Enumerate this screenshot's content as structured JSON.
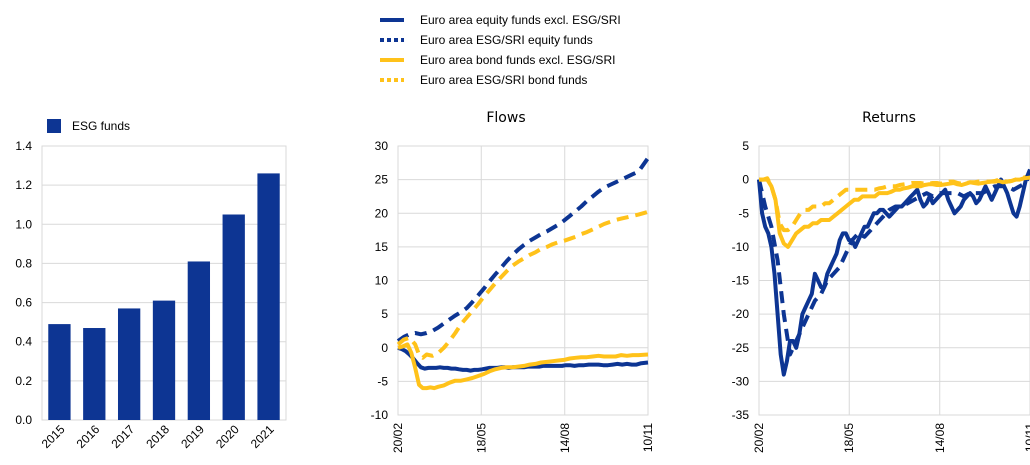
{
  "colors": {
    "blue": "#0d3593",
    "yellow": "#ffc21a",
    "grid": "#d9d9d9",
    "axis": "#8c8c8c"
  },
  "top_legend": [
    {
      "label": "Euro area equity funds excl. ESG/SRI",
      "color": "#0d3593",
      "style": "solid"
    },
    {
      "label": "Euro area ESG/SRI equity funds",
      "color": "#0d3593",
      "style": "dotted"
    },
    {
      "label": "Euro area bond funds excl. ESG/SRI",
      "color": "#ffc21a",
      "style": "solid"
    },
    {
      "label": "Euro area ESG/SRI bond funds",
      "color": "#ffc21a",
      "style": "dotted"
    }
  ],
  "chart_data": [
    {
      "type": "bar",
      "title": "",
      "legend": [
        "ESG funds"
      ],
      "categories": [
        "2015",
        "2016",
        "2017",
        "2018",
        "2019",
        "2020",
        "2021"
      ],
      "series": [
        {
          "name": "ESG funds",
          "values": [
            0.49,
            0.47,
            0.57,
            0.61,
            0.81,
            1.05,
            1.26
          ]
        }
      ],
      "ylim": [
        0,
        1.4
      ],
      "yticks": [
        "0.0",
        "0.2",
        "0.4",
        "0.6",
        "0.8",
        "1.0",
        "1.2",
        "1.4"
      ],
      "grid": true
    },
    {
      "type": "line",
      "title": "Flows",
      "x_ticks": [
        "20/02",
        "18/05",
        "14/08",
        "10/11"
      ],
      "ylim": [
        -10,
        30
      ],
      "yticks": [
        "-10",
        "-5",
        "0",
        "5",
        "10",
        "15",
        "20",
        "25",
        "30"
      ],
      "grid": true,
      "series": [
        {
          "name": "Euro area equity funds excl. ESG/SRI",
          "color": "#0d3593",
          "style": "solid",
          "x": [
            0,
            4,
            8,
            12,
            16,
            20,
            24,
            28,
            32,
            36,
            40,
            44,
            48,
            52,
            56,
            60,
            64,
            68,
            72,
            76,
            80,
            84,
            88,
            92,
            96,
            100,
            104,
            108,
            112,
            116,
            120,
            124,
            128,
            132,
            136,
            140,
            144,
            148,
            152,
            156,
            160,
            164,
            168,
            172,
            176,
            180,
            185,
            190,
            195,
            200,
            205,
            210,
            215,
            220,
            225,
            230,
            235,
            240,
            245,
            250,
            255,
            262
          ],
          "y": [
            0,
            -0.2,
            -0.5,
            -1,
            -1.6,
            -2.3,
            -2.9,
            -3.1,
            -3.0,
            -3.0,
            -3.0,
            -2.9,
            -3.0,
            -3.0,
            -3.1,
            -3.1,
            -3.2,
            -3.3,
            -3.3,
            -3.4,
            -3.3,
            -3.3,
            -3.2,
            -3.1,
            -3.0,
            -3.0,
            -3.0,
            -2.9,
            -2.9,
            -3.0,
            -2.9,
            -2.9,
            -2.9,
            -2.9,
            -2.8,
            -2.8,
            -2.8,
            -2.8,
            -2.7,
            -2.7,
            -2.7,
            -2.7,
            -2.7,
            -2.7,
            -2.6,
            -2.6,
            -2.7,
            -2.6,
            -2.6,
            -2.5,
            -2.5,
            -2.5,
            -2.6,
            -2.6,
            -2.5,
            -2.4,
            -2.5,
            -2.4,
            -2.5,
            -2.5,
            -2.3,
            -2.2
          ]
        },
        {
          "name": "Euro area ESG/SRI equity funds",
          "color": "#0d3593",
          "style": "dashed",
          "x": [
            0,
            6,
            12,
            18,
            24,
            30,
            36,
            42,
            48,
            54,
            60,
            66,
            72,
            78,
            84,
            90,
            96,
            102,
            108,
            114,
            120,
            126,
            132,
            138,
            144,
            150,
            156,
            162,
            168,
            174,
            180,
            186,
            192,
            198,
            204,
            210,
            216,
            222,
            228,
            234,
            240,
            246,
            252,
            256,
            262
          ],
          "y": [
            1.0,
            1.6,
            2.0,
            2.2,
            2.0,
            2.2,
            2.5,
            3.0,
            3.6,
            4.2,
            4.8,
            5.3,
            5.9,
            6.8,
            7.8,
            8.8,
            9.9,
            10.9,
            11.9,
            12.9,
            13.8,
            14.6,
            15.3,
            15.9,
            16.4,
            16.9,
            17.3,
            17.8,
            18.3,
            18.9,
            19.6,
            20.3,
            21.0,
            21.8,
            22.5,
            23.2,
            23.8,
            24.2,
            24.6,
            25.0,
            25.4,
            25.8,
            26.2,
            27.0,
            28.2
          ]
        },
        {
          "name": "Euro area bond funds excl. ESG/SRI",
          "color": "#ffc21a",
          "style": "solid",
          "x": [
            0,
            5,
            10,
            14,
            18,
            22,
            26,
            30,
            34,
            38,
            42,
            48,
            54,
            60,
            66,
            72,
            78,
            84,
            90,
            96,
            102,
            108,
            114,
            120,
            126,
            132,
            138,
            144,
            150,
            156,
            162,
            168,
            174,
            180,
            186,
            192,
            198,
            204,
            210,
            216,
            222,
            228,
            234,
            240,
            246,
            252,
            262
          ],
          "y": [
            0,
            0.2,
            0.5,
            -0.8,
            -3.0,
            -5.5,
            -6.0,
            -6.0,
            -5.9,
            -6.0,
            -5.8,
            -5.6,
            -5.2,
            -4.9,
            -4.9,
            -4.7,
            -4.5,
            -4.2,
            -3.9,
            -3.5,
            -3.2,
            -3.0,
            -2.9,
            -2.9,
            -2.8,
            -2.7,
            -2.5,
            -2.4,
            -2.2,
            -2.1,
            -2.0,
            -1.9,
            -1.8,
            -1.6,
            -1.5,
            -1.4,
            -1.4,
            -1.3,
            -1.2,
            -1.3,
            -1.3,
            -1.3,
            -1.1,
            -1.2,
            -1.1,
            -1.1,
            -1.0
          ]
        },
        {
          "name": "Euro area ESG/SRI bond funds",
          "color": "#ffc21a",
          "style": "dashed",
          "x": [
            0,
            6,
            12,
            18,
            22,
            26,
            30,
            36,
            42,
            48,
            54,
            60,
            66,
            72,
            78,
            84,
            90,
            96,
            102,
            108,
            114,
            120,
            126,
            132,
            138,
            144,
            150,
            156,
            162,
            168,
            174,
            180,
            186,
            192,
            198,
            204,
            210,
            216,
            222,
            228,
            234,
            240,
            246,
            252,
            262
          ],
          "y": [
            0.5,
            1.2,
            1.5,
            0.5,
            -1.0,
            -1.5,
            -1.0,
            -1.2,
            -0.8,
            0.0,
            1.0,
            2.2,
            3.5,
            4.5,
            5.5,
            6.5,
            7.6,
            8.6,
            9.6,
            10.5,
            11.4,
            12.2,
            12.8,
            13.3,
            13.8,
            14.2,
            14.7,
            15.0,
            15.4,
            15.7,
            15.9,
            16.2,
            16.5,
            16.9,
            17.2,
            17.6,
            18.0,
            18.4,
            18.7,
            19.0,
            19.2,
            19.4,
            19.6,
            19.8,
            20.2
          ]
        }
      ]
    },
    {
      "type": "line",
      "title": "Returns",
      "x_ticks": [
        "20/02",
        "18/05",
        "14/08",
        "10/11"
      ],
      "ylim": [
        -35,
        5
      ],
      "yticks": [
        "-35",
        "-30",
        "-25",
        "-20",
        "-15",
        "-10",
        "-5",
        "0",
        "5"
      ],
      "grid": true,
      "series": [
        {
          "name": "Euro area equity funds excl. ESG/SRI",
          "color": "#0d3593",
          "style": "solid",
          "x": [
            0,
            3,
            6,
            9,
            12,
            15,
            18,
            21,
            24,
            27,
            30,
            33,
            36,
            39,
            42,
            45,
            48,
            51,
            54,
            57,
            60,
            63,
            66,
            69,
            72,
            75,
            78,
            81,
            84,
            87,
            90,
            93,
            96,
            99,
            102,
            105,
            108,
            111,
            114,
            117,
            120,
            123,
            126,
            129,
            132,
            135,
            138,
            141,
            144,
            147,
            150,
            153,
            156,
            159,
            162,
            165,
            168,
            171,
            174,
            177,
            180,
            183,
            186,
            189,
            192,
            195,
            198,
            201,
            204,
            207,
            210,
            213,
            216,
            219,
            222,
            225,
            228,
            231,
            234,
            237,
            240,
            243,
            246,
            249,
            252,
            255,
            258,
            262
          ],
          "y": [
            0,
            -5,
            -7,
            -8,
            -10,
            -14,
            -20,
            -26,
            -29,
            -27,
            -24,
            -24,
            -25,
            -23,
            -20,
            -19,
            -18,
            -17,
            -14,
            -15,
            -16,
            -16,
            -14,
            -13,
            -12,
            -11,
            -9,
            -8,
            -8,
            -9,
            -9,
            -10,
            -9,
            -8,
            -7,
            -7,
            -6,
            -5,
            -5,
            -4.5,
            -4.5,
            -5,
            -5.5,
            -5,
            -4.5,
            -4,
            -4,
            -3.5,
            -3,
            -2.5,
            -2,
            -1.5,
            -3,
            -4,
            -3.5,
            -2.5,
            -3.5,
            -3,
            -2.5,
            -2,
            -1.5,
            -3,
            -4,
            -5,
            -4.5,
            -4,
            -3,
            -2.5,
            -2,
            -2.5,
            -3.5,
            -3,
            -2,
            -1,
            -2,
            -3,
            -2,
            -1,
            0,
            -1,
            -2,
            -3.5,
            -5,
            -5.5,
            -4,
            -2,
            0,
            1.5
          ]
        },
        {
          "name": "Euro area ESG/SRI equity funds",
          "color": "#0d3593",
          "style": "dashed",
          "x": [
            0,
            6,
            12,
            18,
            24,
            30,
            36,
            42,
            48,
            54,
            60,
            66,
            72,
            78,
            84,
            90,
            96,
            102,
            108,
            114,
            120,
            126,
            132,
            138,
            144,
            150,
            156,
            162,
            168,
            174,
            180,
            186,
            192,
            198,
            204,
            210,
            216,
            222,
            228,
            234,
            240,
            246,
            252,
            258,
            262
          ],
          "y": [
            0,
            -4,
            -7,
            -12,
            -20,
            -26,
            -24,
            -22,
            -20,
            -18,
            -17,
            -15,
            -14,
            -13,
            -11,
            -9,
            -8,
            -8.5,
            -7.5,
            -6.5,
            -5.5,
            -4.5,
            -4,
            -4,
            -3.5,
            -3,
            -2.5,
            -2,
            -2.5,
            -2,
            -2,
            -2,
            -2,
            -2.5,
            -2,
            -2,
            -2,
            -1.5,
            -1,
            -1,
            -1,
            -1.5,
            -1,
            -0.5,
            1.0
          ]
        },
        {
          "name": "Euro area bond funds excl. ESG/SRI",
          "color": "#ffc21a",
          "style": "solid",
          "x": [
            0,
            4,
            8,
            12,
            16,
            20,
            24,
            28,
            32,
            36,
            40,
            44,
            48,
            52,
            56,
            60,
            64,
            68,
            72,
            76,
            80,
            84,
            88,
            92,
            96,
            100,
            104,
            108,
            112,
            116,
            120,
            124,
            128,
            132,
            136,
            140,
            144,
            148,
            152,
            156,
            160,
            164,
            168,
            172,
            176,
            180,
            184,
            188,
            192,
            196,
            200,
            204,
            208,
            212,
            216,
            220,
            224,
            228,
            232,
            236,
            240,
            244,
            248,
            252,
            256,
            262
          ],
          "y": [
            0,
            0,
            0,
            -1,
            -3,
            -8,
            -9.5,
            -10,
            -9,
            -8,
            -7.5,
            -7,
            -7,
            -6.5,
            -6.5,
            -6,
            -6,
            -6,
            -5.5,
            -5,
            -4.5,
            -4,
            -3.5,
            -3,
            -3,
            -2.5,
            -2.5,
            -2.5,
            -2.5,
            -2,
            -2,
            -2,
            -1.8,
            -1.5,
            -1.5,
            -1.3,
            -1.2,
            -1,
            -1,
            -1,
            -0.8,
            -0.7,
            -0.7,
            -0.8,
            -0.8,
            -0.7,
            -0.6,
            -0.5,
            -0.7,
            -0.8,
            -0.6,
            -0.4,
            -0.5,
            -0.6,
            -0.5,
            -0.4,
            -0.3,
            -0.3,
            -0.2,
            -0.4,
            -0.3,
            -0.2,
            0,
            0,
            0.2,
            0.3
          ]
        },
        {
          "name": "Euro area ESG/SRI bond funds",
          "color": "#ffc21a",
          "style": "dashed",
          "x": [
            0,
            4,
            8,
            12,
            16,
            20,
            24,
            28,
            32,
            36,
            40,
            44,
            48,
            52,
            56,
            60,
            64,
            68,
            72,
            76,
            80,
            84,
            88,
            92,
            96,
            100,
            104,
            108,
            112,
            116,
            120,
            124,
            128,
            132,
            136,
            140,
            144,
            148,
            152,
            156,
            160,
            164,
            168,
            172,
            176,
            180,
            184,
            188,
            192,
            196,
            200,
            204,
            208,
            212,
            216,
            220,
            224,
            228,
            232,
            236,
            240,
            244,
            248,
            252,
            256,
            262
          ],
          "y": [
            0,
            0,
            0.2,
            -1,
            -3,
            -6.5,
            -7.5,
            -7.5,
            -7,
            -6,
            -5,
            -4.5,
            -4.5,
            -4,
            -4,
            -4,
            -3.5,
            -3.5,
            -3,
            -2.5,
            -2,
            -1.5,
            -1.5,
            -1.5,
            -1.5,
            -1.5,
            -1.5,
            -1.5,
            -1.5,
            -1.3,
            -1.2,
            -1,
            -1,
            -1,
            -0.8,
            -0.7,
            -0.6,
            -0.5,
            -0.5,
            -0.5,
            -0.6,
            -0.6,
            -0.5,
            -0.5,
            -0.6,
            -0.5,
            -0.3,
            -0.3,
            -0.5,
            -0.6,
            -0.5,
            -0.4,
            -0.4,
            -0.3,
            -0.2,
            -0.3,
            -0.3,
            -0.2,
            0,
            -0.2,
            -0.3,
            -0.2,
            0,
            0.2,
            0.3,
            0.6
          ]
        }
      ]
    }
  ]
}
